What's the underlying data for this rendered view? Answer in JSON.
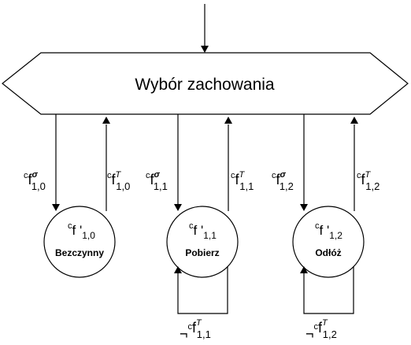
{
  "title": "Wybór zachowania",
  "nodes": [
    {
      "f_sup": "c",
      "f_main": "f '",
      "f_sub": "1,0",
      "name": "Bezczynny"
    },
    {
      "f_sup": "c",
      "f_main": "f '",
      "f_sub": "1,1",
      "name": "Pobierz"
    },
    {
      "f_sup": "c",
      "f_main": "f '",
      "f_sub": "1,2",
      "name": "Odłóż"
    }
  ],
  "edges_down": [
    {
      "pre": "c",
      "main": "f",
      "sup": "σ",
      "sub": "1,0"
    },
    {
      "pre": "c",
      "main": "f",
      "sup": "σ",
      "sub": "1,1"
    },
    {
      "pre": "c",
      "main": "f",
      "sup": "σ",
      "sub": "1,2"
    }
  ],
  "edges_up": [
    {
      "pre": "c",
      "main": "f",
      "sup": "T",
      "sub": "1,0"
    },
    {
      "pre": "c",
      "main": "f",
      "sup": "T",
      "sub": "1,1"
    },
    {
      "pre": "c",
      "main": "f",
      "sup": "T",
      "sub": "1,2"
    }
  ],
  "loops": [
    {
      "neg": "¬",
      "pre": "c",
      "main": "f",
      "sup": "T",
      "sub": "1,1"
    },
    {
      "neg": "¬",
      "pre": "c",
      "main": "f",
      "sup": "T",
      "sub": "1,2"
    }
  ]
}
